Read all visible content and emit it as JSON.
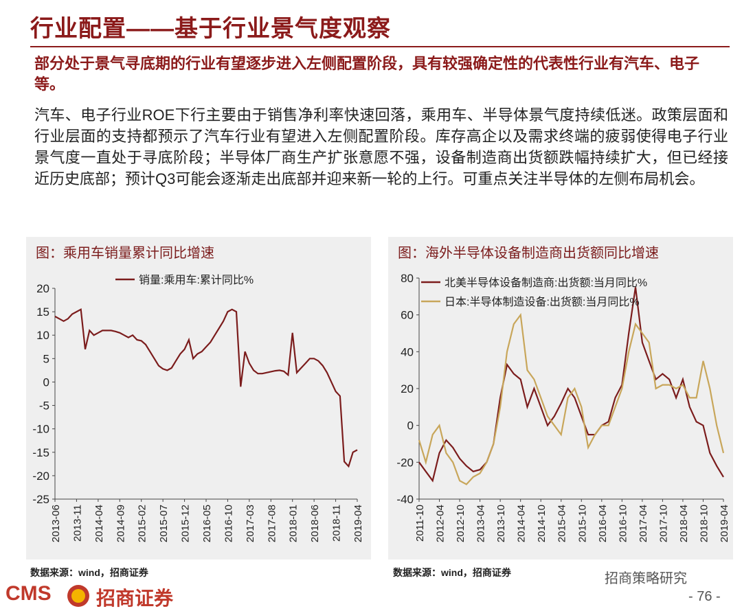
{
  "header": {
    "title": "行业配置——基于行业景气度观察",
    "subtitle": "部分处于景气寻底期的行业有望逐步进入左侧配置阶段，具有较强确定性的代表性行业有汽车、电子等。",
    "body": "汽车、电子行业ROE下行主要由于销售净利率快速回落，乘用车、半导体景气度持续低迷。政策层面和行业层面的支持都预示了汽车行业有望进入左侧配置阶段。库存高企以及需求终端的疲弱使得电子行业景气度一直处于寻底阶段；半导体厂商生产扩张意愿不强，设备制造商出货额跌幅持续扩大，但已经接近历史底部；预计Q3可能会逐渐走出底部并迎来新一轮的上行。可重点关注半导体的左侧布局机会。"
  },
  "chart_data": [
    {
      "type": "line",
      "title": "图：乘用车销量累计同比增速",
      "source": "数据来源：wind，招商证券",
      "legend": "top",
      "categories": [
        "2013-06",
        null,
        null,
        null,
        null,
        "2013-11",
        null,
        null,
        null,
        null,
        "2014-04",
        null,
        null,
        null,
        null,
        "2014-09",
        null,
        null,
        null,
        null,
        "2015-02",
        null,
        null,
        null,
        null,
        "2015-07",
        null,
        null,
        null,
        null,
        "2015-12",
        null,
        null,
        null,
        null,
        "2016-05",
        null,
        null,
        null,
        null,
        "2016-10",
        null,
        null,
        null,
        null,
        "2017-03",
        null,
        null,
        null,
        null,
        "2017-08",
        null,
        null,
        null,
        null,
        "2018-01",
        null,
        null,
        null,
        null,
        "2018-06",
        null,
        null,
        null,
        null,
        "2018-11",
        null,
        null,
        null,
        null,
        "2019-04"
      ],
      "series": [
        {
          "name": "销量:乘用车:累计同比%",
          "color": "#7b1c1c",
          "values": [
            14,
            13.5,
            13,
            13.5,
            14.5,
            15,
            15.5,
            7,
            11,
            10,
            10.5,
            11,
            11,
            11,
            10.8,
            10.5,
            10,
            9.5,
            10,
            9,
            8.8,
            8,
            6.5,
            5,
            3.5,
            2.8,
            2.5,
            3,
            4.5,
            6,
            7,
            9,
            5,
            6,
            6.5,
            7.5,
            8.5,
            10,
            11.5,
            13,
            15,
            15.5,
            15,
            -1,
            6.5,
            4,
            2.5,
            1.8,
            1.8,
            2,
            2.2,
            2.4,
            2.5,
            2.3,
            1.5,
            10.5,
            2,
            3,
            4,
            5,
            5,
            4.5,
            3.5,
            2,
            0,
            -2,
            -3,
            -17,
            -18,
            -15,
            -14.5
          ]
        }
      ],
      "ylim": [
        -25,
        20
      ],
      "yticks": [
        -25,
        -20,
        -15,
        -10,
        -5,
        0,
        5,
        10,
        15,
        20
      ]
    },
    {
      "type": "line",
      "title": "图：海外半导体设备制造商出货额同比增速",
      "source": "数据来源：wind，招商证券",
      "legend": "top",
      "categories": [
        "2011-10",
        null,
        null,
        "2012-04",
        null,
        null,
        "2012-10",
        null,
        null,
        "2013-04",
        null,
        null,
        "2013-10",
        null,
        null,
        "2014-04",
        null,
        null,
        "2014-10",
        null,
        null,
        "2015-04",
        null,
        null,
        "2015-10",
        null,
        null,
        "2016-04",
        null,
        null,
        "2016-10",
        null,
        null,
        "2017-04",
        null,
        null,
        "2017-10",
        null,
        null,
        "2018-04",
        null,
        null,
        "2018-10",
        null,
        null,
        "2019-04"
      ],
      "series": [
        {
          "name": "北美半导体设备制造商:出货额:当月同比%",
          "color": "#7b1c1c",
          "values": [
            -20,
            -25,
            -30,
            -15,
            -8,
            -12,
            -18,
            -22,
            -25,
            -24,
            -20,
            -10,
            15,
            33,
            28,
            25,
            10,
            20,
            10,
            0,
            5,
            12,
            20,
            15,
            5,
            -5,
            -5,
            0,
            2,
            15,
            22,
            50,
            75,
            45,
            35,
            25,
            28,
            25,
            15,
            25,
            10,
            2,
            0,
            -15,
            -22,
            -28
          ]
        },
        {
          "name": "日本:半导体制造设备:出货额:当月同比%",
          "color": "#c8a65a",
          "values": [
            -8,
            -20,
            -5,
            0,
            -15,
            -20,
            -30,
            -32,
            -28,
            -26,
            -20,
            -10,
            10,
            40,
            55,
            60,
            30,
            25,
            15,
            5,
            0,
            -5,
            15,
            20,
            10,
            -12,
            -5,
            0,
            0,
            10,
            20,
            40,
            55,
            50,
            45,
            20,
            22,
            22,
            20,
            22,
            15,
            15,
            35,
            20,
            0,
            -15
          ]
        }
      ],
      "ylim": [
        -40,
        80
      ],
      "yticks": [
        -40,
        -20,
        0,
        20,
        40,
        60,
        80
      ]
    }
  ],
  "footer": {
    "logo": "CMS",
    "company": "招商证券",
    "account": "招商策略研究",
    "page": "- 76 -"
  }
}
